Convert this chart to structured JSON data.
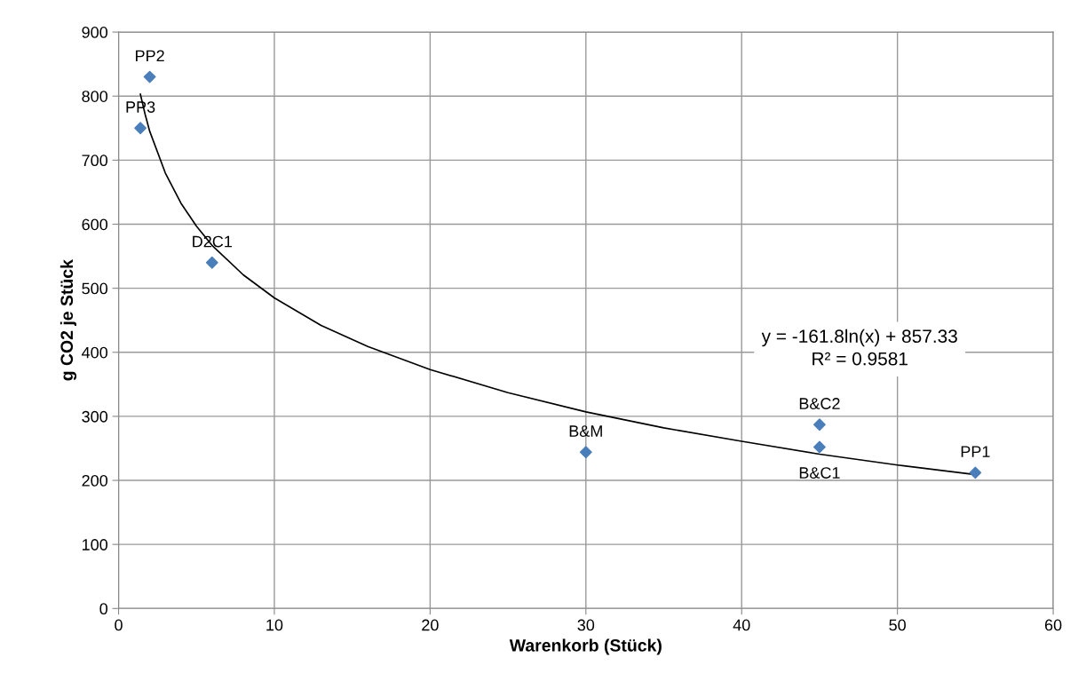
{
  "chart_data": {
    "type": "scatter",
    "xlabel": "Warenkorb (Stück)",
    "ylabel": "g CO2 je Stück",
    "xlim": [
      0,
      60
    ],
    "xticks": [
      0,
      10,
      20,
      30,
      40,
      50,
      60
    ],
    "ylim": [
      0,
      900
    ],
    "yticks": [
      0,
      100,
      200,
      300,
      400,
      500,
      600,
      700,
      800,
      900
    ],
    "grid": true,
    "legend": false,
    "marker": "diamond",
    "series": [
      {
        "color": "#4a7ebb",
        "x": [
          2.0,
          1.4,
          6.0,
          30,
          45,
          45,
          55
        ],
        "values": [
          830,
          750,
          540,
          244,
          287,
          252,
          212
        ]
      },
      {
        "type": "line",
        "color": "#000000",
        "marker": "none",
        "line_style": "solid",
        "x": [
          1.4,
          1.7,
          2,
          3,
          4,
          5,
          6,
          8,
          10,
          13,
          16,
          20,
          25,
          30,
          35,
          40,
          45,
          50,
          55
        ],
        "values": [
          803,
          772,
          745,
          680,
          633,
          597,
          567,
          521,
          485,
          442,
          409,
          373,
          337,
          307,
          282,
          261,
          241,
          224,
          209
        ]
      }
    ],
    "annotations": [
      {
        "text": "PP2",
        "x": 2.0,
        "y": 830
      },
      {
        "text": "PP3",
        "x": 1.4,
        "y": 750
      },
      {
        "text": "D2C1",
        "x": 6.0,
        "y": 540
      },
      {
        "text": "B&M",
        "x": 30,
        "y": 244
      },
      {
        "text": "B&C2",
        "x": 45,
        "y": 287
      },
      {
        "text": "B&C1",
        "x": 45,
        "y": 252
      },
      {
        "text": "PP1",
        "x": 55,
        "y": 212
      },
      "y = -161.8ln(x) + 857.33\nR² = 0.9581"
    ]
  }
}
